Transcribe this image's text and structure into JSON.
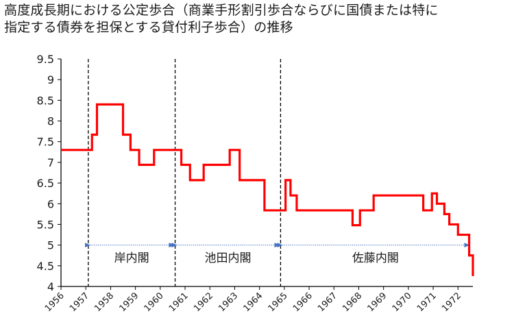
{
  "title": {
    "line1": "高度成長期における公定歩合（商業手形割引歩合ならびに国債または特に",
    "line2": "指定する債券を担保とする貸付利子歩合）の推移"
  },
  "colors": {
    "series": "#ff0000",
    "axis": "#000000",
    "arrow": "#4472c4",
    "text": "#1a1a1a"
  },
  "chart_data": {
    "type": "line",
    "title": "高度成長期における公定歩合（商業手形割引歩合ならびに国債または特に指定する債券を担保とする貸付利子歩合）の推移",
    "xlabel": "",
    "ylabel": "",
    "xlim": [
      1956,
      1972.6
    ],
    "ylim": [
      4,
      9.5
    ],
    "grid": false,
    "legend": "none",
    "x_ticks": [
      1956,
      1957,
      1958,
      1959,
      1960,
      1961,
      1962,
      1963,
      1964,
      1965,
      1966,
      1967,
      1968,
      1969,
      1970,
      1971,
      1972
    ],
    "y_ticks": [
      4,
      4.5,
      5,
      5.5,
      6,
      6.5,
      7,
      7.5,
      8,
      8.5,
      9,
      9.5
    ],
    "series": [
      {
        "x": [
          1956.0,
          1957.25,
          1957.45,
          1958.5,
          1958.8,
          1959.15,
          1959.75,
          1960.85,
          1961.2,
          1961.75,
          1962.8,
          1963.2,
          1964.2,
          1965.05,
          1965.25,
          1965.5,
          1967.75,
          1968.05,
          1968.6,
          1970.6,
          1970.95,
          1971.15,
          1971.45,
          1971.65,
          1972.0,
          1972.45,
          1972.6
        ],
        "y": [
          7.3,
          7.67,
          8.4,
          7.67,
          7.3,
          6.94,
          7.3,
          6.94,
          6.57,
          6.94,
          7.3,
          6.57,
          5.84,
          6.57,
          6.2,
          5.84,
          5.48,
          5.84,
          6.2,
          5.84,
          6.25,
          6.0,
          5.75,
          5.5,
          5.25,
          4.75,
          4.25
        ]
      }
    ],
    "cabinets": [
      {
        "label": "岸内閣",
        "from": 1957.1,
        "to": 1960.6
      },
      {
        "label": "池田内閣",
        "from": 1960.6,
        "to": 1964.85
      },
      {
        "label": "佐藤内閣",
        "from": 1964.85,
        "to": 1972.5
      }
    ]
  }
}
